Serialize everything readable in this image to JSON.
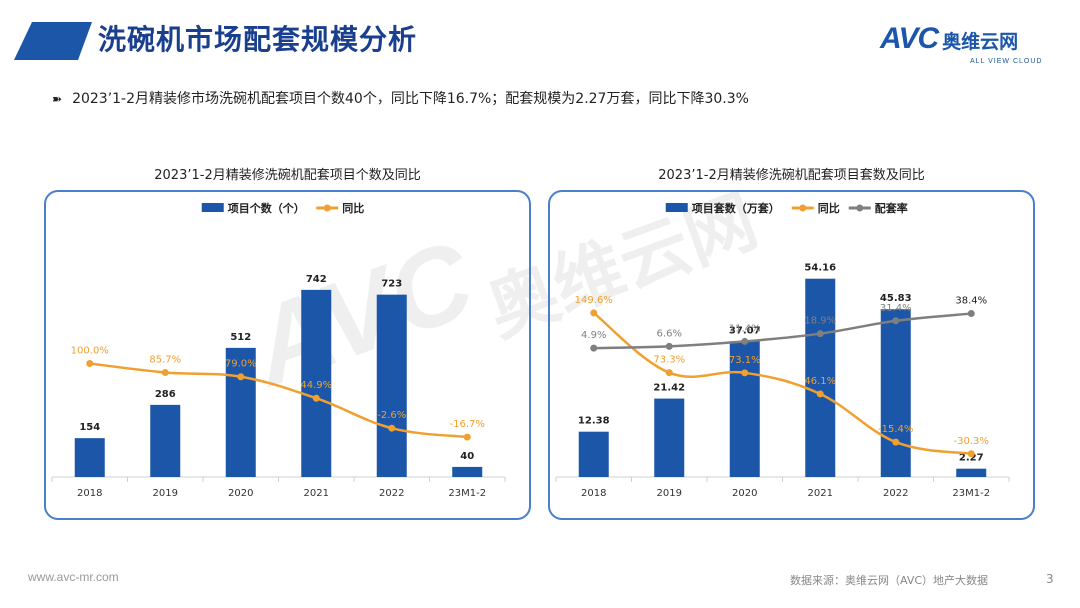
{
  "header": {
    "title": "洗碗机市场配套规模分析",
    "logo_text": "AVC",
    "logo_cn": "奥维云网",
    "logo_sub": "ALL VIEW CLOUD"
  },
  "summary": "2023’1-2月精装修市场洗碗机配套项目个数40个，同比下降16.7%；配套规模为2.27万套，同比下降30.3%",
  "footer": {
    "url": "www.avc-mr.com",
    "source": "数据来源：奥维云网（AVC）地产大数据",
    "page": "3"
  },
  "colors": {
    "bar": "#1b56a8",
    "yoy": "#f0a030",
    "rate": "#7f7f7f",
    "title": "#1b3f8f",
    "panel_border": "#4a7fcc"
  },
  "chart_data": [
    {
      "type": "bar",
      "title": "2023’1-2月精装修洗碗机配套项目个数及同比",
      "categories": [
        "2018",
        "2019",
        "2020",
        "2021",
        "2022",
        "23M1-2"
      ],
      "series": [
        {
          "name": "项目个数（个）",
          "type": "bar",
          "values": [
            154,
            286,
            512,
            742,
            723,
            40
          ],
          "labels": [
            "154",
            "286",
            "512",
            "742",
            "723",
            "40"
          ]
        },
        {
          "name": "同比",
          "type": "line",
          "values": [
            100.0,
            85.7,
            79.0,
            44.9,
            -2.6,
            -16.7
          ],
          "labels": [
            "100.0%",
            "85.7%",
            "79.0%",
            "44.9%",
            "-2.6%",
            "-16.7%"
          ]
        }
      ],
      "legend": "top-center",
      "grid": false
    },
    {
      "type": "bar",
      "title": "2023’1-2月精装修洗碗机配套项目套数及同比",
      "categories": [
        "2018",
        "2019",
        "2020",
        "2021",
        "2022",
        "23M1-2"
      ],
      "series": [
        {
          "name": "项目套数（万套）",
          "type": "bar",
          "values": [
            12.38,
            21.42,
            37.07,
            54.16,
            45.83,
            2.27
          ],
          "labels": [
            "12.38",
            "21.42",
            "37.07",
            "54.16",
            "45.83",
            "2.27"
          ]
        },
        {
          "name": "同比",
          "type": "line",
          "values": [
            149.6,
            73.3,
            73.1,
            46.1,
            -15.4,
            -30.3
          ],
          "labels": [
            "149.6%",
            "73.3%",
            "73.1%",
            "46.1%",
            "-15.4%",
            "-30.3%"
          ]
        },
        {
          "name": "配套率",
          "type": "line",
          "values": [
            4.9,
            6.6,
            11.4,
            18.9,
            31.4,
            38.4
          ],
          "labels": [
            "4.9%",
            "6.6%",
            "11.4%",
            "18.9%",
            "31.4%",
            "38.4%"
          ]
        }
      ],
      "legend": "top-center",
      "grid": false
    }
  ]
}
